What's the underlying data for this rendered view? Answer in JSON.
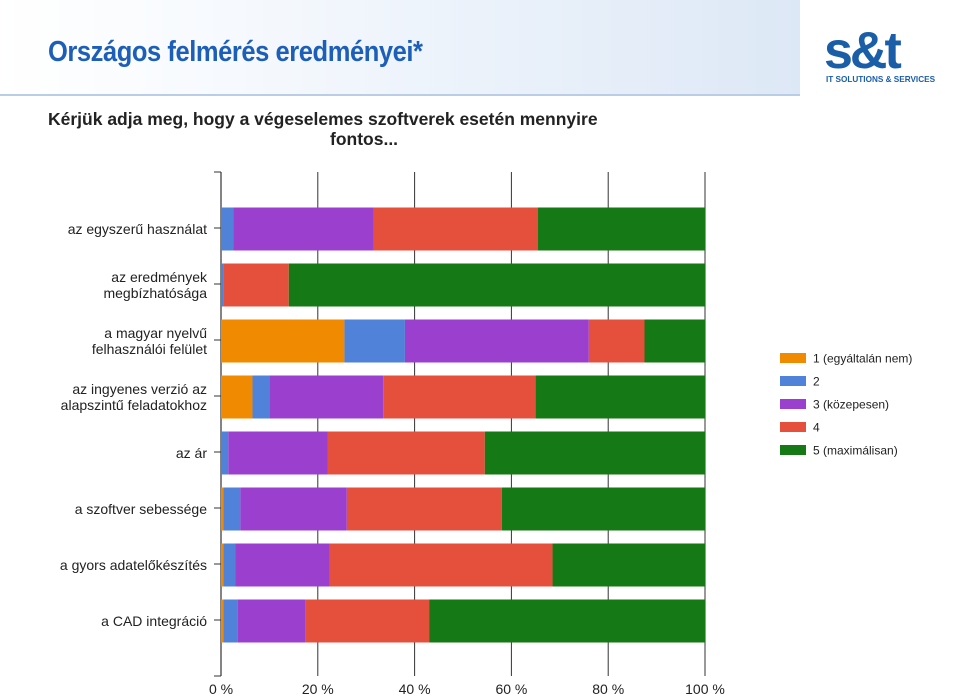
{
  "slide": {
    "title": "Országos felmérés eredményei*"
  },
  "logo": {
    "mark": "s&t",
    "tagline": "IT SOLUTIONS & SERVICES",
    "color": "#1b5ea8"
  },
  "chart_data": {
    "type": "bar",
    "orientation": "horizontal",
    "stacked": true,
    "title": "Kérjük adja meg, hogy a végeselemes szoftverek esetén mennyire fontos...",
    "title_lines": [
      "Kérjük adja meg, hogy a végeselemes szoftverek esetén mennyire",
      "fontos..."
    ],
    "xlim": [
      0,
      100
    ],
    "x_ticks": [
      "0 %",
      "20 %",
      "40 %",
      "60 %",
      "80 %",
      "100 %"
    ],
    "grid": true,
    "legend_position": "right",
    "categories": [
      [
        "az egyszerű használat"
      ],
      [
        "az eredmények",
        "megbízhatósága"
      ],
      [
        "a magyar nyelvű",
        "felhasználói felület"
      ],
      [
        "az ingyenes verzió az",
        "alapszintű feladatokhoz"
      ],
      [
        "az ár"
      ],
      [
        "a szoftver sebessége"
      ],
      [
        "a gyors adatelőkészítés"
      ],
      [
        "a CAD integráció"
      ]
    ],
    "series": [
      {
        "name": "1 (egyáltalán nem)",
        "color": "#f08a00",
        "values": [
          0.0,
          0.0,
          25.5,
          6.5,
          0.0,
          0.5,
          0.5,
          0.5
        ]
      },
      {
        "name": "2",
        "color": "#4f82d8",
        "values": [
          2.5,
          0.5,
          12.5,
          3.5,
          1.5,
          3.5,
          2.5,
          3.0
        ]
      },
      {
        "name": "3 (közepesen)",
        "color": "#9b3fcf",
        "values": [
          29.0,
          0.0,
          38.0,
          23.5,
          20.5,
          22.0,
          19.5,
          14.0
        ]
      },
      {
        "name": "4",
        "color": "#e5503c",
        "values": [
          34.0,
          13.5,
          11.5,
          31.5,
          32.5,
          32.0,
          46.0,
          25.5
        ]
      },
      {
        "name": "5 (maximálisan)",
        "color": "#157a15",
        "values": [
          34.5,
          86.0,
          12.5,
          35.0,
          45.5,
          42.0,
          31.5,
          57.0
        ]
      }
    ]
  }
}
